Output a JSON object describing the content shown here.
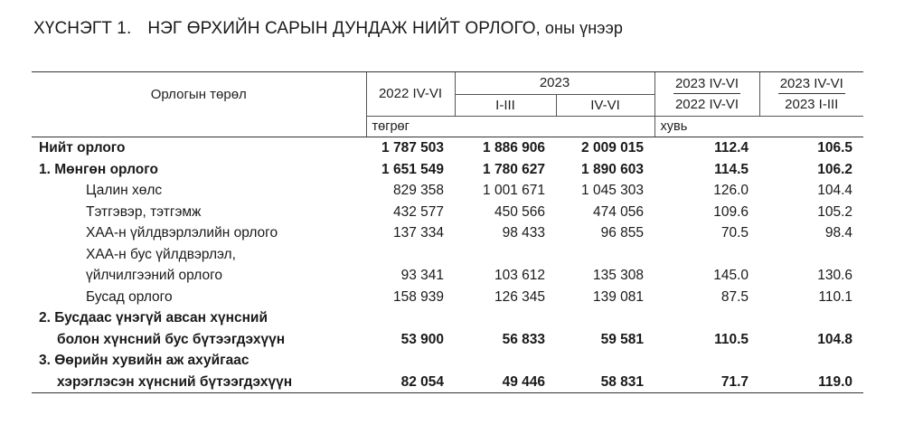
{
  "title": {
    "number": "ХҮСНЭГТ 1.",
    "main": "НЭГ ӨРХИЙН САРЫН ДУНДАЖ НИЙТ ОРЛОГО",
    "suffix": ", оны үнээр"
  },
  "header": {
    "row_label": "Орлогын төрөл",
    "col_2022": "2022 IV-VI",
    "col_2023": "2023",
    "col_2023_q1": "I-III",
    "col_2023_q2": "IV-VI",
    "ratio1_top": "2023 IV-VI",
    "ratio1_bottom": "2022 IV-VI",
    "ratio2_top": "2023 IV-VI",
    "ratio2_bottom": "2023 I-III",
    "unit_value": "төгрөг",
    "unit_percent": "хувь"
  },
  "rows": [
    {
      "label": "Нийт орлого",
      "v2022": "1 787 503",
      "q1": "1 886 906",
      "q2": "2 009 015",
      "r1": "112.4",
      "r2": "106.5"
    },
    {
      "label": "1. Мөнгөн орлого",
      "v2022": "1 651 549",
      "q1": "1 780 627",
      "q2": "1 890 603",
      "r1": "114.5",
      "r2": "106.2"
    },
    {
      "label": "Цалин хөлс",
      "v2022": "829 358",
      "q1": "1 001 671",
      "q2": "1 045 303",
      "r1": "126.0",
      "r2": "104.4"
    },
    {
      "label": "Тэтгэвэр, тэтгэмж",
      "v2022": "432 577",
      "q1": "450 566",
      "q2": "474 056",
      "r1": "109.6",
      "r2": "105.2"
    },
    {
      "label": "ХАА-н үйлдвэрлэлийн орлого",
      "v2022": "137 334",
      "q1": "98 433",
      "q2": "96 855",
      "r1": "70.5",
      "r2": "98.4"
    },
    {
      "label_line1": "ХАА-н бус үйлдвэрлэл,",
      "label": "үйлчилгээний орлого",
      "v2022": "93 341",
      "q1": "103 612",
      "q2": "135 308",
      "r1": "145.0",
      "r2": "130.6"
    },
    {
      "label": "Бусад орлого",
      "v2022": "158 939",
      "q1": "126 345",
      "q2": "139 081",
      "r1": "87.5",
      "r2": "110.1"
    },
    {
      "label_line1": "2. Бусдаас үнэгүй авсан хүнсний",
      "label": "болон хүнсний бус бүтээгдэхүүн",
      "v2022": "53 900",
      "q1": "56 833",
      "q2": "59 581",
      "r1": "110.5",
      "r2": "104.8"
    },
    {
      "label_line1": "3. Өөрийн хувийн аж ахуйгаас",
      "label": "хэрэглэсэн хүнсний бүтээгдэхүүн",
      "v2022": "82 054",
      "q1": "49 446",
      "q2": "58 831",
      "r1": "71.7",
      "r2": "119.0"
    }
  ]
}
